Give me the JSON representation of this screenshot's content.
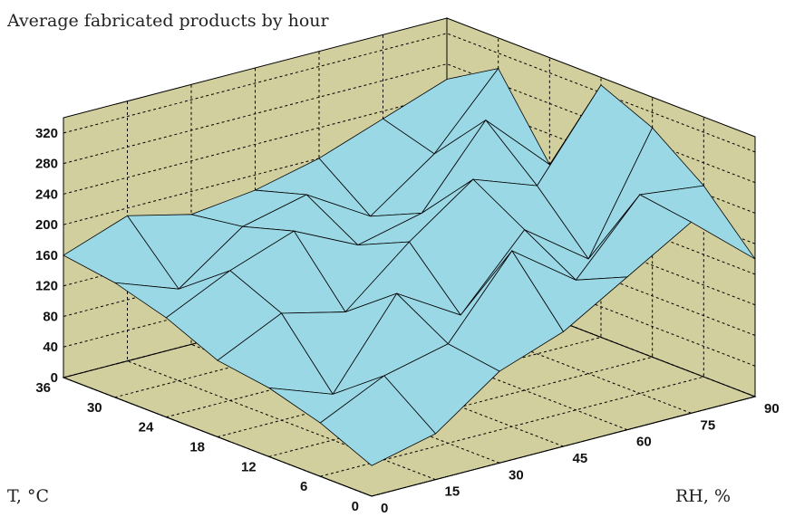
{
  "chart_data": {
    "type": "surface",
    "title": "Average fabricated products by hour",
    "xlabel": "T, °C",
    "ylabel": "RH, %",
    "zlabel": "",
    "x_ticks": [
      "0",
      "6",
      "12",
      "18",
      "24",
      "30",
      "36"
    ],
    "y_ticks": [
      "0",
      "15",
      "30",
      "45",
      "60",
      "75",
      "90"
    ],
    "z_ticks": [
      "0",
      "40",
      "80",
      "120",
      "160",
      "200",
      "240",
      "280",
      "320"
    ],
    "xlim": [
      0,
      36
    ],
    "ylim": [
      0,
      90
    ],
    "zlim": [
      0,
      340
    ],
    "grid": true,
    "wall_color": "#d2cf9e",
    "surface_color": "#9ad8e6",
    "x": [
      0,
      6,
      12,
      18,
      24,
      30,
      36
    ],
    "y": [
      0,
      15,
      30,
      45,
      60,
      75,
      90
    ],
    "z": [
      [
        40,
        60,
        120,
        150,
        200,
        250,
        180
      ],
      [
        70,
        110,
        130,
        230,
        170,
        260,
        250
      ],
      [
        90,
        60,
        170,
        120,
        210,
        150,
        300
      ],
      [
        100,
        140,
        120,
        190,
        250,
        220,
        330
      ],
      [
        130,
        170,
        200,
        160,
        180,
        280,
        200
      ],
      [
        150,
        120,
        180,
        200,
        150,
        210,
        300
      ],
      [
        160,
        190,
        170,
        180,
        200,
        230,
        260
      ]
    ]
  }
}
